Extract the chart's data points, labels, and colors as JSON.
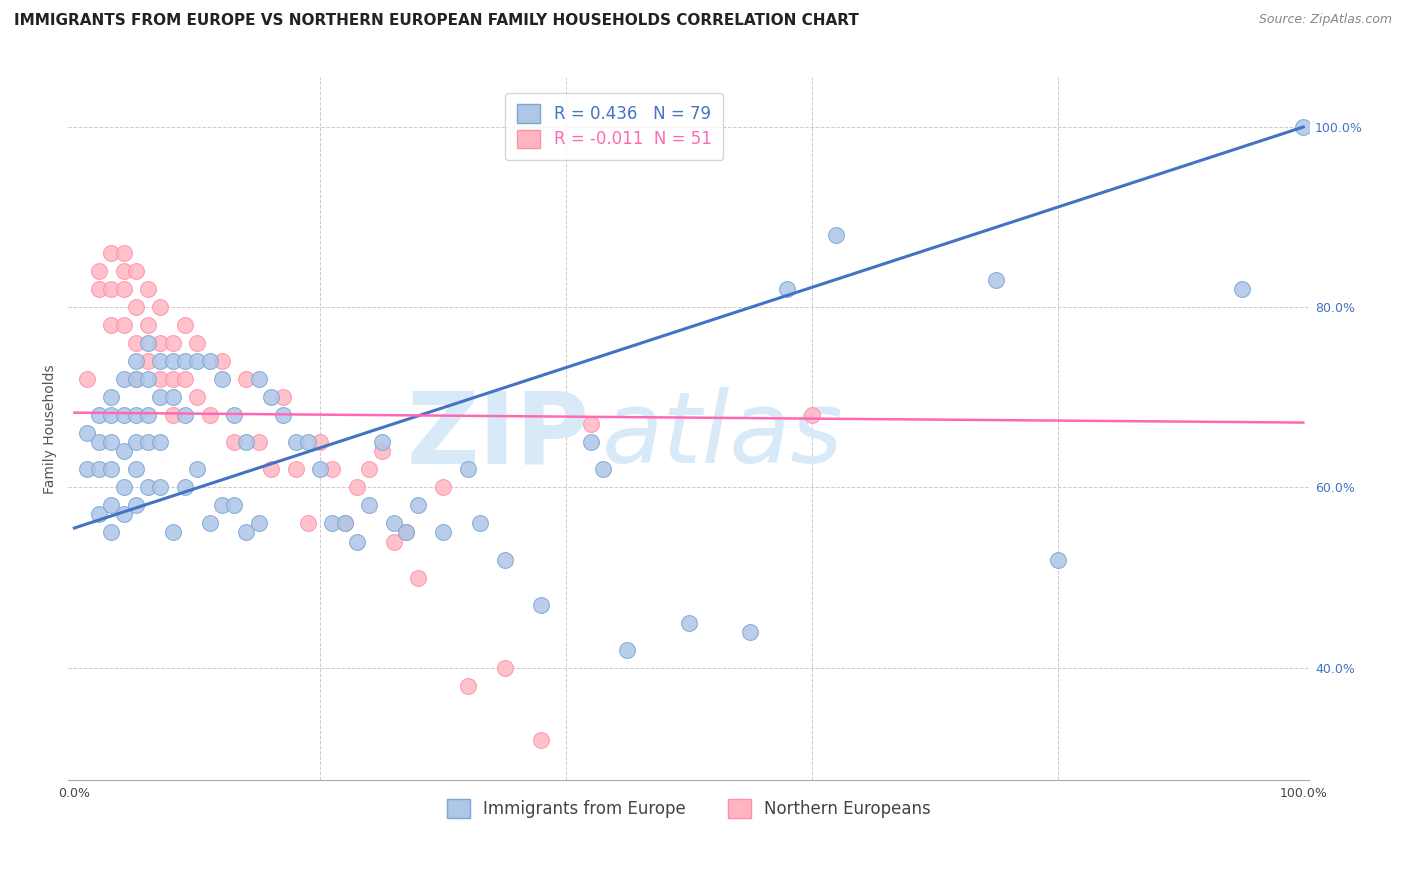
{
  "title": "IMMIGRANTS FROM EUROPE VS NORTHERN EUROPEAN FAMILY HOUSEHOLDS CORRELATION CHART",
  "source": "Source: ZipAtlas.com",
  "ylabel": "Family Households",
  "legend_blue_label": "Immigrants from Europe",
  "legend_pink_label": "Northern Europeans",
  "blue_R": 0.436,
  "blue_N": 79,
  "pink_R": -0.011,
  "pink_N": 51,
  "xlim": [
    -0.005,
    1.005
  ],
  "ylim": [
    0.275,
    1.055
  ],
  "right_yticks": [
    0.4,
    0.6,
    0.8,
    1.0
  ],
  "right_yticklabels": [
    "40.0%",
    "60.0%",
    "80.0%",
    "100.0%"
  ],
  "bottom_xticks": [
    0.0,
    0.2,
    0.4,
    0.6,
    0.8,
    1.0
  ],
  "bottom_xticklabels": [
    "0.0%",
    "",
    "",
    "",
    "",
    "100.0%"
  ],
  "blue_x": [
    0.01,
    0.01,
    0.02,
    0.02,
    0.02,
    0.02,
    0.03,
    0.03,
    0.03,
    0.03,
    0.03,
    0.03,
    0.04,
    0.04,
    0.04,
    0.04,
    0.04,
    0.05,
    0.05,
    0.05,
    0.05,
    0.05,
    0.05,
    0.06,
    0.06,
    0.06,
    0.06,
    0.06,
    0.07,
    0.07,
    0.07,
    0.07,
    0.08,
    0.08,
    0.08,
    0.09,
    0.09,
    0.09,
    0.1,
    0.1,
    0.11,
    0.11,
    0.12,
    0.12,
    0.13,
    0.13,
    0.14,
    0.14,
    0.15,
    0.15,
    0.16,
    0.17,
    0.18,
    0.19,
    0.2,
    0.21,
    0.22,
    0.23,
    0.24,
    0.25,
    0.26,
    0.27,
    0.28,
    0.3,
    0.32,
    0.33,
    0.35,
    0.38,
    0.42,
    0.43,
    0.45,
    0.5,
    0.55,
    0.58,
    0.62,
    0.75,
    0.8,
    0.95,
    1.0
  ],
  "blue_y": [
    0.66,
    0.62,
    0.68,
    0.65,
    0.62,
    0.57,
    0.7,
    0.68,
    0.65,
    0.62,
    0.58,
    0.55,
    0.72,
    0.68,
    0.64,
    0.6,
    0.57,
    0.74,
    0.72,
    0.68,
    0.65,
    0.62,
    0.58,
    0.76,
    0.72,
    0.68,
    0.65,
    0.6,
    0.74,
    0.7,
    0.65,
    0.6,
    0.74,
    0.7,
    0.55,
    0.74,
    0.68,
    0.6,
    0.74,
    0.62,
    0.74,
    0.56,
    0.72,
    0.58,
    0.68,
    0.58,
    0.65,
    0.55,
    0.72,
    0.56,
    0.7,
    0.68,
    0.65,
    0.65,
    0.62,
    0.56,
    0.56,
    0.54,
    0.58,
    0.65,
    0.56,
    0.55,
    0.58,
    0.55,
    0.62,
    0.56,
    0.52,
    0.47,
    0.65,
    0.62,
    0.42,
    0.45,
    0.44,
    0.82,
    0.88,
    0.83,
    0.52,
    0.82,
    1.0
  ],
  "pink_x": [
    0.01,
    0.02,
    0.02,
    0.03,
    0.03,
    0.03,
    0.04,
    0.04,
    0.04,
    0.04,
    0.05,
    0.05,
    0.05,
    0.05,
    0.06,
    0.06,
    0.06,
    0.07,
    0.07,
    0.07,
    0.08,
    0.08,
    0.08,
    0.09,
    0.09,
    0.1,
    0.1,
    0.11,
    0.12,
    0.13,
    0.14,
    0.15,
    0.16,
    0.17,
    0.18,
    0.19,
    0.2,
    0.21,
    0.22,
    0.23,
    0.24,
    0.25,
    0.26,
    0.27,
    0.28,
    0.3,
    0.32,
    0.35,
    0.38,
    0.42,
    0.6
  ],
  "pink_y": [
    0.72,
    0.84,
    0.82,
    0.86,
    0.82,
    0.78,
    0.86,
    0.84,
    0.82,
    0.78,
    0.84,
    0.8,
    0.76,
    0.72,
    0.82,
    0.78,
    0.74,
    0.8,
    0.76,
    0.72,
    0.76,
    0.72,
    0.68,
    0.78,
    0.72,
    0.76,
    0.7,
    0.68,
    0.74,
    0.65,
    0.72,
    0.65,
    0.62,
    0.7,
    0.62,
    0.56,
    0.65,
    0.62,
    0.56,
    0.6,
    0.62,
    0.64,
    0.54,
    0.55,
    0.5,
    0.6,
    0.38,
    0.4,
    0.32,
    0.67,
    0.68
  ],
  "blue_line_color": "#4472C4",
  "pink_line_color": "#FF69B4",
  "blue_scatter_color": "#AEC6E8",
  "pink_scatter_color": "#FFB6C1",
  "blue_scatter_edge": "#7AA8D4",
  "pink_scatter_edge": "#FF8FAE",
  "grid_color": "#CCCCCC",
  "watermark_color": "#D8EAF8",
  "background_color": "#FFFFFF",
  "title_fontsize": 11,
  "axis_label_fontsize": 10,
  "tick_fontsize": 9,
  "legend_fontsize": 12,
  "source_fontsize": 9,
  "blue_line_start_y": 0.555,
  "blue_line_end_y": 1.0,
  "pink_line_start_y": 0.683,
  "pink_line_end_y": 0.672
}
